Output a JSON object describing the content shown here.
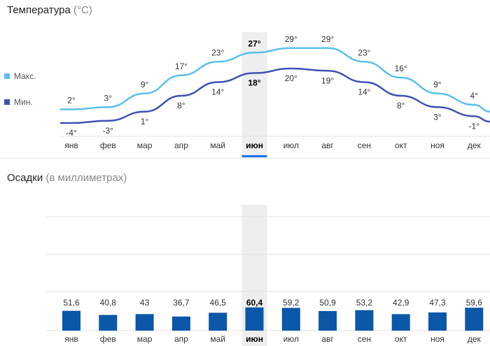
{
  "temperature": {
    "title": "Температура",
    "unit": "(°C)",
    "legend": [
      {
        "label": "Макс.",
        "color": "#5bc0eb"
      },
      {
        "label": "Мин.",
        "color": "#3f51b5"
      }
    ]
  },
  "precipitation": {
    "title": "Осадки",
    "unit": "(в миллиметрах)"
  },
  "selected_month_index": 5,
  "selection_color": "#1a73e8",
  "selection_bg": "#eeeeee",
  "bar_color": "#0b57a8",
  "chart_data": [
    {
      "type": "line",
      "categories": [
        "янв",
        "фев",
        "мар",
        "апр",
        "май",
        "июн",
        "июл",
        "авг",
        "сен",
        "окт",
        "ноя",
        "дек"
      ],
      "series": [
        {
          "name": "Макс.",
          "color": "#5bc0eb",
          "values": [
            2,
            3,
            9,
            17,
            23,
            27,
            29,
            29,
            23,
            16,
            9,
            4
          ],
          "labels": [
            "2°",
            "3°",
            "9°",
            "17°",
            "23°",
            "27°",
            "29°",
            "29°",
            "23°",
            "16°",
            "9°",
            "4°"
          ]
        },
        {
          "name": "Мин.",
          "color": "#3f51b5",
          "values": [
            -4,
            -3,
            1,
            8,
            14,
            18,
            20,
            19,
            14,
            8,
            3,
            -1
          ],
          "labels": [
            "-4°",
            "-3°",
            "1°",
            "8°",
            "14°",
            "18°",
            "20°",
            "19°",
            "14°",
            "8°",
            "3°",
            "-1°"
          ]
        }
      ]
    },
    {
      "type": "bar",
      "categories": [
        "янв",
        "фев",
        "мар",
        "апр",
        "май",
        "июн",
        "июл",
        "авг",
        "сен",
        "окт",
        "ноя",
        "дек"
      ],
      "values": [
        51.6,
        40.8,
        43,
        36.7,
        46.5,
        60.4,
        59.2,
        50.9,
        53.2,
        42.9,
        47.3,
        59.6
      ],
      "labels": [
        "51,6",
        "40,8",
        "43",
        "36,7",
        "46,5",
        "60,4",
        "59,2",
        "50,9",
        "53,2",
        "42,9",
        "47,3",
        "59,6"
      ]
    }
  ]
}
